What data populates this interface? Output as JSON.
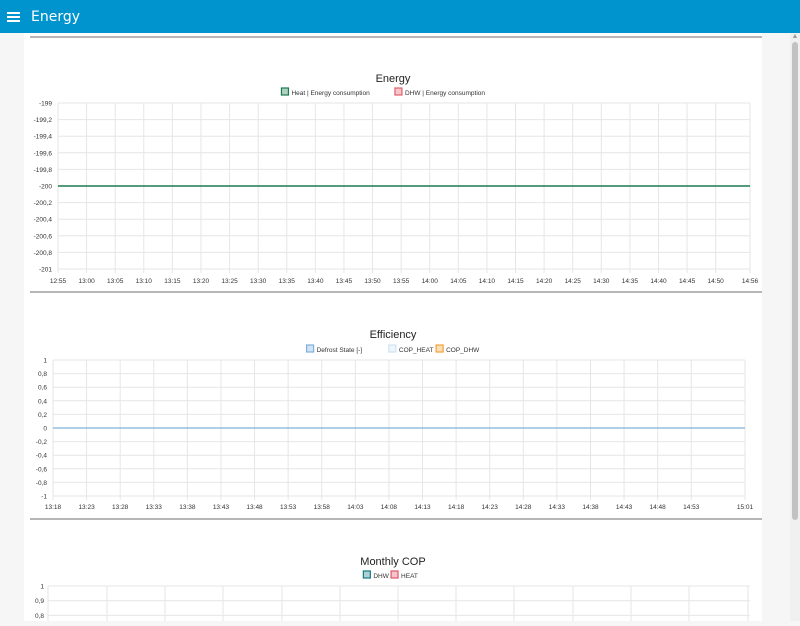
{
  "app": {
    "title": "Energy",
    "menu_icon": "hamburger-menu-icon"
  },
  "colors": {
    "topbar": "#0094ce",
    "grid": "#e6e6e6",
    "divider": "#9e9e9e"
  },
  "chart_data": [
    {
      "type": "line",
      "title": "Energy",
      "xlabel": "",
      "ylabel": "",
      "x_ticks": [
        "12:55",
        "13:00",
        "13:05",
        "13:10",
        "13:15",
        "13:20",
        "13:25",
        "13:30",
        "13:35",
        "13:40",
        "13:45",
        "13:50",
        "13:55",
        "14:00",
        "14:05",
        "14:10",
        "14:15",
        "14:20",
        "14:25",
        "14:30",
        "14:35",
        "14:40",
        "14:45",
        "14:50",
        "14:56"
      ],
      "y_ticks": [
        "-199",
        "-199,2",
        "-199,4",
        "-199,6",
        "-199,8",
        "-200",
        "-200,2",
        "-200,4",
        "-200,6",
        "-200,8",
        "-201"
      ],
      "ylim": [
        -201,
        -199
      ],
      "xlim": [
        "12:55",
        "14:56"
      ],
      "series": [
        {
          "name": "Heat | Energy consumption",
          "color": "#1a7a4f",
          "x": [
            "12:55",
            "14:56"
          ],
          "values": [
            -200,
            -200
          ]
        },
        {
          "name": "DHW | Energy consumption",
          "color": "#e35d6a",
          "x": [],
          "values": []
        }
      ],
      "grid": true,
      "legend": "top-center"
    },
    {
      "type": "line",
      "title": "Efficiency",
      "xlabel": "",
      "ylabel": "",
      "x_ticks": [
        "13:18",
        "13:23",
        "13:28",
        "13:33",
        "13:38",
        "13:43",
        "13:48",
        "13:53",
        "13:58",
        "14:03",
        "14:08",
        "14:13",
        "14:18",
        "14:23",
        "14:28",
        "14:33",
        "14:38",
        "14:43",
        "14:48",
        "14:53",
        "15:01"
      ],
      "y_ticks": [
        "1",
        "0,8",
        "0,6",
        "0,4",
        "0,2",
        "0",
        "-0,2",
        "-0,4",
        "-0,6",
        "-0,8",
        "-1"
      ],
      "ylim": [
        -1,
        1
      ],
      "xlim": [
        "13:18",
        "15:01"
      ],
      "series": [
        {
          "name": "Defrost State [-]",
          "color": "#7fb0db",
          "x": [
            "13:18",
            "15:01"
          ],
          "values": [
            0,
            0
          ]
        },
        {
          "name": "COP_HEAT",
          "color": "#cfe2f3",
          "x": [],
          "values": []
        },
        {
          "name": "COP_DHW",
          "color": "#f3a23a",
          "x": [],
          "values": []
        }
      ],
      "grid": true,
      "legend": "top-center"
    },
    {
      "type": "bar",
      "title": "Monthly COP",
      "xlabel": "",
      "ylabel": "",
      "y_ticks": [
        "1",
        "0,9",
        "0,8"
      ],
      "ylim": [
        0,
        1
      ],
      "series": [
        {
          "name": "DHW",
          "color": "#167a84",
          "values": []
        },
        {
          "name": "HEAT",
          "color": "#e0566b",
          "values": []
        }
      ],
      "grid": true,
      "legend": "top-center"
    }
  ]
}
